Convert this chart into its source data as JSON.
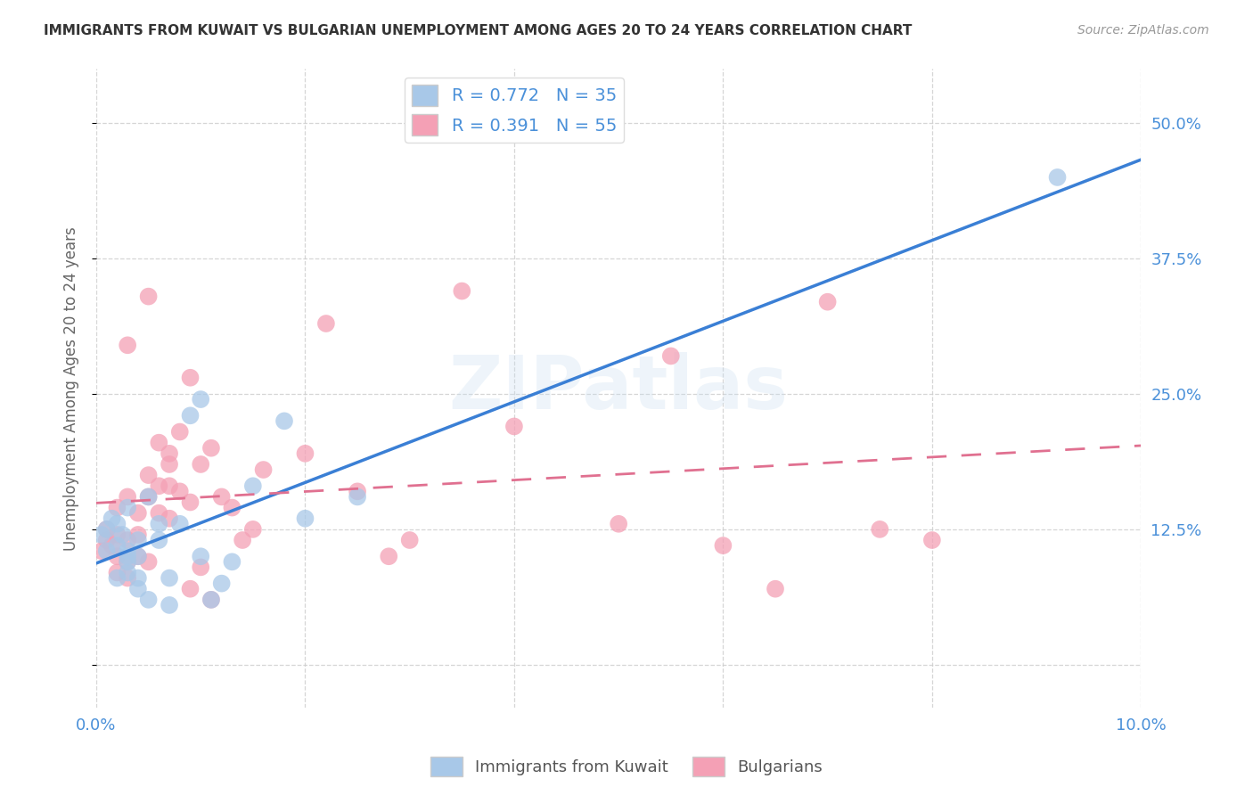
{
  "title": "IMMIGRANTS FROM KUWAIT VS BULGARIAN UNEMPLOYMENT AMONG AGES 20 TO 24 YEARS CORRELATION CHART",
  "source": "Source: ZipAtlas.com",
  "ylabel": "Unemployment Among Ages 20 to 24 years",
  "xlim": [
    0.0,
    0.1
  ],
  "ylim": [
    -0.04,
    0.55
  ],
  "yticks": [
    0.0,
    0.125,
    0.25,
    0.375,
    0.5
  ],
  "ytick_labels_right": [
    "",
    "12.5%",
    "25.0%",
    "37.5%",
    "50.0%"
  ],
  "xticks": [
    0.0,
    0.02,
    0.04,
    0.06,
    0.08,
    0.1
  ],
  "xtick_labels": [
    "0.0%",
    "",
    "",
    "",
    "",
    "10.0%"
  ],
  "kuwait_R": 0.772,
  "kuwait_N": 35,
  "bulg_R": 0.391,
  "bulg_N": 55,
  "legend_label_1": "Immigrants from Kuwait",
  "legend_label_2": "Bulgarians",
  "blue_scatter": "#a8c8e8",
  "pink_scatter": "#f4a0b5",
  "line_blue": "#3a7fd5",
  "line_pink": "#e07090",
  "watermark": "ZIPatlas",
  "tick_color": "#4a90d9",
  "background_color": "#ffffff",
  "kuwait_x": [
    0.0005,
    0.001,
    0.001,
    0.0015,
    0.002,
    0.002,
    0.002,
    0.0025,
    0.003,
    0.003,
    0.003,
    0.003,
    0.003,
    0.004,
    0.004,
    0.004,
    0.004,
    0.005,
    0.005,
    0.006,
    0.006,
    0.007,
    0.007,
    0.008,
    0.009,
    0.01,
    0.01,
    0.011,
    0.012,
    0.013,
    0.015,
    0.018,
    0.02,
    0.025,
    0.092
  ],
  "kuwait_y": [
    0.12,
    0.105,
    0.125,
    0.135,
    0.08,
    0.11,
    0.13,
    0.12,
    0.085,
    0.095,
    0.1,
    0.105,
    0.145,
    0.07,
    0.08,
    0.1,
    0.115,
    0.06,
    0.155,
    0.115,
    0.13,
    0.055,
    0.08,
    0.13,
    0.23,
    0.1,
    0.245,
    0.06,
    0.075,
    0.095,
    0.165,
    0.225,
    0.135,
    0.155,
    0.45
  ],
  "bulg_x": [
    0.0005,
    0.001,
    0.001,
    0.0015,
    0.002,
    0.002,
    0.002,
    0.002,
    0.003,
    0.003,
    0.003,
    0.003,
    0.004,
    0.004,
    0.004,
    0.005,
    0.005,
    0.005,
    0.006,
    0.006,
    0.006,
    0.007,
    0.007,
    0.007,
    0.008,
    0.008,
    0.009,
    0.009,
    0.01,
    0.01,
    0.011,
    0.012,
    0.013,
    0.014,
    0.015,
    0.016,
    0.02,
    0.022,
    0.025,
    0.028,
    0.03,
    0.035,
    0.04,
    0.05,
    0.055,
    0.06,
    0.065,
    0.07,
    0.075,
    0.08,
    0.003,
    0.005,
    0.007,
    0.009,
    0.011
  ],
  "bulg_y": [
    0.105,
    0.115,
    0.125,
    0.11,
    0.085,
    0.1,
    0.12,
    0.145,
    0.08,
    0.095,
    0.115,
    0.155,
    0.1,
    0.12,
    0.14,
    0.095,
    0.155,
    0.175,
    0.14,
    0.165,
    0.205,
    0.135,
    0.165,
    0.195,
    0.16,
    0.215,
    0.15,
    0.265,
    0.09,
    0.185,
    0.2,
    0.155,
    0.145,
    0.115,
    0.125,
    0.18,
    0.195,
    0.315,
    0.16,
    0.1,
    0.115,
    0.345,
    0.22,
    0.13,
    0.285,
    0.11,
    0.07,
    0.335,
    0.125,
    0.115,
    0.295,
    0.34,
    0.185,
    0.07,
    0.06
  ]
}
